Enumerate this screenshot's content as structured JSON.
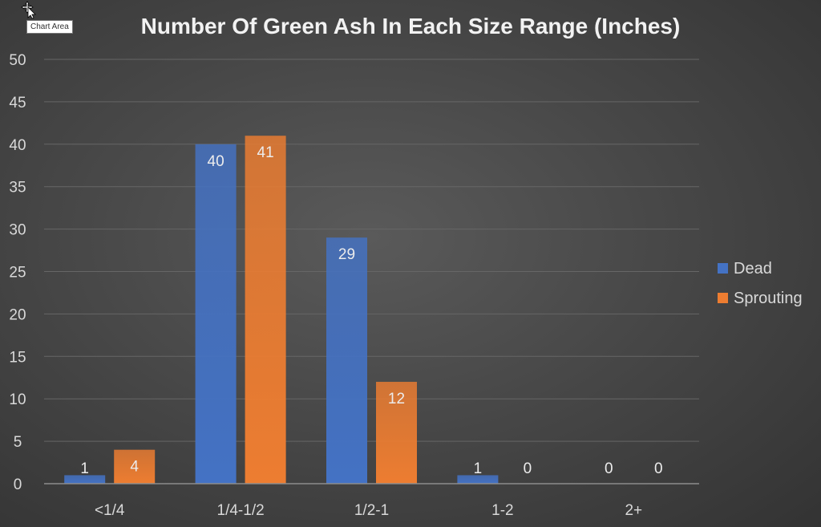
{
  "tooltip": "Chart Area",
  "colors": {
    "dead": "#4472c4",
    "sprouting": "#ed7d31",
    "text": "#d9d9d9",
    "title": "#f2f2f2",
    "grid": "#666666",
    "axis": "#8c8c8c"
  },
  "chart_data": {
    "type": "bar",
    "title": "Number Of Green Ash In Each Size Range (Inches)",
    "categories": [
      "<1/4",
      "1/4-1/2",
      "1/2-1",
      "1-2",
      "2+"
    ],
    "series": [
      {
        "name": "Dead",
        "color": "#4472c4",
        "values": [
          1,
          40,
          29,
          1,
          0
        ]
      },
      {
        "name": "Sprouting",
        "color": "#ed7d31",
        "values": [
          4,
          41,
          12,
          0,
          0
        ]
      }
    ],
    "ylim": [
      0,
      50
    ],
    "yticks": [
      0,
      5,
      10,
      15,
      20,
      25,
      30,
      35,
      40,
      45,
      50
    ],
    "grid": true,
    "legend": "right",
    "data_labels": true
  }
}
